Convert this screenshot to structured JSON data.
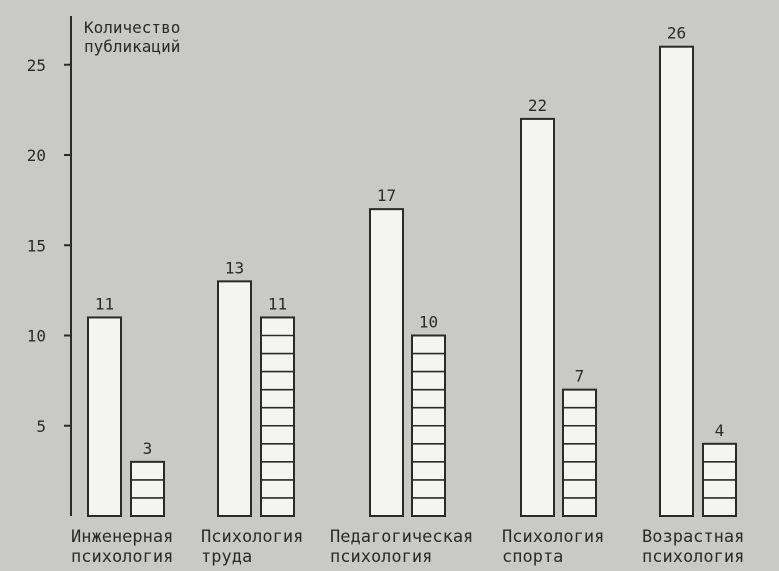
{
  "chart_data": {
    "type": "bar",
    "ylabel_lines": [
      "Количество",
      "публикаций"
    ],
    "ylim": [
      0,
      27
    ],
    "yticks": [
      5,
      10,
      15,
      20,
      25
    ],
    "categories": [
      {
        "lines": [
          "Инженерная",
          "психология"
        ]
      },
      {
        "lines": [
          "Психология",
          "труда"
        ]
      },
      {
        "lines": [
          "Педагогическая",
          "психология"
        ]
      },
      {
        "lines": [
          "Психология",
          "спорта"
        ]
      },
      {
        "lines": [
          "Возрастная",
          "психология"
        ]
      }
    ],
    "series": [
      {
        "style": "outline",
        "values": [
          11,
          13,
          17,
          22,
          26
        ]
      },
      {
        "style": "hatched",
        "values": [
          3,
          11,
          10,
          7,
          4
        ]
      }
    ],
    "grid": false,
    "colors": {
      "background": "#c9c9c6",
      "ink": "#2a2a2a",
      "bar_fill": "#f4f4f1"
    }
  }
}
